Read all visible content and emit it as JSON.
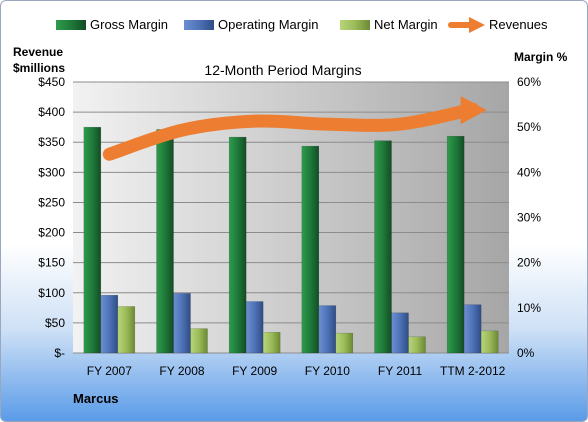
{
  "chart_data": {
    "type": "bar",
    "title": "12-Month Period Margins",
    "y_left_label_line1": "Revenue",
    "y_left_label_line2": "$millions",
    "y_right_label": "Margin %",
    "footer": "Marcus",
    "categories": [
      "FY 2007",
      "FY 2008",
      "FY 2009",
      "FY 2010",
      "FY 2011",
      "TTM 2-2012"
    ],
    "y_left_ticks": [
      "$-",
      "$50",
      "$100",
      "$150",
      "$200",
      "$250",
      "$300",
      "$350",
      "$400",
      "$450"
    ],
    "y_right_ticks": [
      "0%",
      "10%",
      "20%",
      "30%",
      "40%",
      "50%",
      "60%"
    ],
    "y_left_lim": [
      0,
      450
    ],
    "y_right_lim": [
      0,
      60
    ],
    "legend_position": "top",
    "grid": true,
    "series": [
      {
        "name": "Gross Margin",
        "axis": "right",
        "color": "#1f7a3a",
        "values": [
          50,
          49.5,
          47.8,
          45.8,
          47,
          48
        ]
      },
      {
        "name": "Operating Margin",
        "axis": "right",
        "color": "#4f73b8",
        "values": [
          12.8,
          13.2,
          11.4,
          10.5,
          8.9,
          10.7
        ]
      },
      {
        "name": "Net Margin",
        "axis": "right",
        "color": "#9bbb59",
        "values": [
          10.3,
          5.4,
          4.6,
          4.4,
          3.6,
          4.9
        ]
      },
      {
        "name": "Revenues",
        "axis": "left",
        "type": "line",
        "color": "#ed7d31",
        "values": [
          330,
          370,
          385,
          380,
          380,
          405
        ]
      }
    ]
  }
}
